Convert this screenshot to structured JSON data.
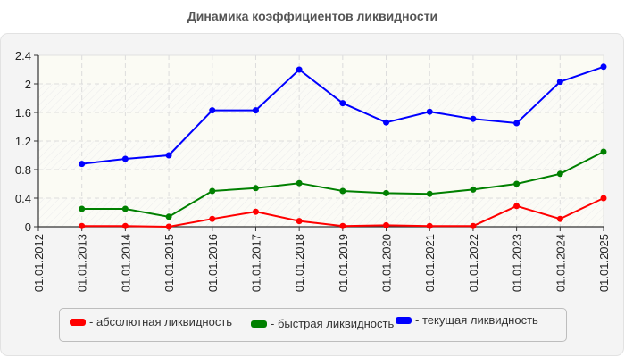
{
  "title": "Динамика коэффициентов ликвидности",
  "legend": [
    {
      "label": "- абсолютная ликвидность",
      "color": "#ff0000"
    },
    {
      "label": "- быстрая ликвидность",
      "color": "#008000"
    },
    {
      "label": "- текущая ликвидность",
      "color": "#0000ff"
    }
  ],
  "chart_data": {
    "type": "line",
    "title": "Динамика коэффициентов ликвидности",
    "xlabel": "",
    "ylabel": "",
    "x": [
      "01.01.2012",
      "01.01.2013",
      "01.01.2014",
      "01.01.2015",
      "01.01.2016",
      "01.01.2017",
      "01.01.2018",
      "01.01.2019",
      "01.01.2020",
      "01.01.2021",
      "01.01.2022",
      "01.01.2023",
      "01.01.2024",
      "01.01.2025"
    ],
    "ylim": [
      0,
      2.4
    ],
    "yticks": [
      "0",
      "0.4",
      "0.8",
      "1.2",
      "1.6",
      "2",
      "2.4"
    ],
    "grid": true,
    "legend_position": "bottom",
    "series": [
      {
        "name": "абсолютная ликвидность",
        "color": "#ff0000",
        "values": [
          null,
          0.01,
          0.01,
          0.0,
          0.11,
          0.21,
          0.08,
          0.01,
          0.02,
          0.01,
          0.01,
          0.29,
          0.11,
          0.4
        ]
      },
      {
        "name": "быстрая ликвидность",
        "color": "#008000",
        "values": [
          null,
          0.25,
          0.25,
          0.14,
          0.5,
          0.54,
          0.61,
          0.5,
          0.47,
          0.46,
          0.52,
          0.6,
          0.74,
          1.05
        ]
      },
      {
        "name": "текущая ликвидность",
        "color": "#0000ff",
        "values": [
          null,
          0.88,
          0.95,
          1.0,
          1.63,
          1.63,
          2.2,
          1.73,
          1.46,
          1.61,
          1.51,
          1.45,
          2.03,
          2.24
        ]
      }
    ]
  }
}
